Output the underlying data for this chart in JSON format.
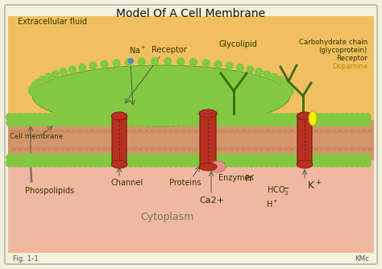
{
  "title": "Model Of A Cell Membrane",
  "bg_outer": "#f5f0dc",
  "bg_extracellular": "#f0c060",
  "bg_cytoplasm": "#f0b8a0",
  "membrane_brown": "#c8864a",
  "membrane_tan": "#d4956a",
  "phospholipid_green": "#82c840",
  "phospholipid_dark": "#4a8a20",
  "protein_red": "#b83020",
  "protein_dark": "#7a1810",
  "labels": {
    "title": "Model Of A Cell Membrane",
    "extracellular": "Extracellular fluid",
    "cell_membrane": "Cell membrane",
    "cytoplasm": "Cytoplasm",
    "channel": "Channel",
    "phospolipids": "Phospolipids",
    "proteins": "Proteins",
    "enzymes": "Enzymes",
    "receptor1": "Receptor",
    "glycolipid": "Glycolipid",
    "carbohydrate": "Carbohydrate chain",
    "glycoprotein": "(glycoprotein)",
    "receptor2": "Receptor",
    "dopamine": "Dopamine",
    "fig": "Fig. 1-1",
    "kmc": "KMc"
  },
  "figsize": [
    4.74,
    3.34
  ],
  "dpi": 100
}
